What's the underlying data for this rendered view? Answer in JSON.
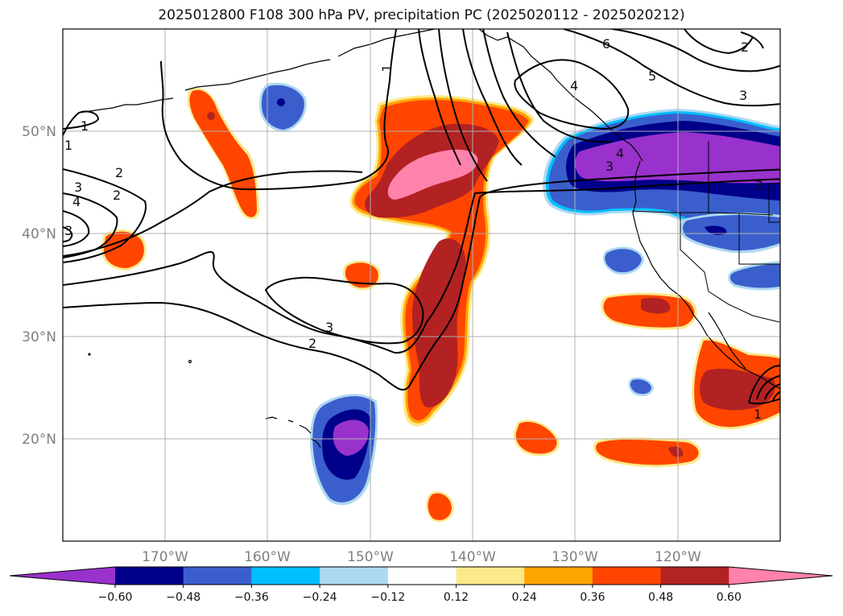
{
  "title": "2025012800 F108 300 hPa PV, precipitation PC (2025020112 - 2025020212)",
  "lon_labels": [
    "170°W",
    "160°W",
    "150°W",
    "140°W",
    "130°W",
    "120°W"
  ],
  "lat_labels": [
    "50°N",
    "40°N",
    "30°N",
    "20°N"
  ],
  "colorbar": {
    "colors": [
      "#9932cc",
      "#00008b",
      "#3a5fcd",
      "#00bfff",
      "#add8f0",
      "#ffffff",
      "#fce98a",
      "#ffa500",
      "#ff4500",
      "#b22222",
      "#ff82ab"
    ],
    "tick_labels": [
      "−0.60",
      "−0.48",
      "−0.36",
      "−0.24",
      "−0.12",
      "0.12",
      "0.24",
      "0.36",
      "0.48",
      "0.60"
    ]
  },
  "contour_labels": [
    "1",
    "2",
    "3",
    "4",
    "5",
    "6",
    "2",
    "3",
    "4",
    "3",
    "1",
    "3",
    "2",
    "1",
    "3",
    "4",
    "3",
    "2",
    "1"
  ]
}
